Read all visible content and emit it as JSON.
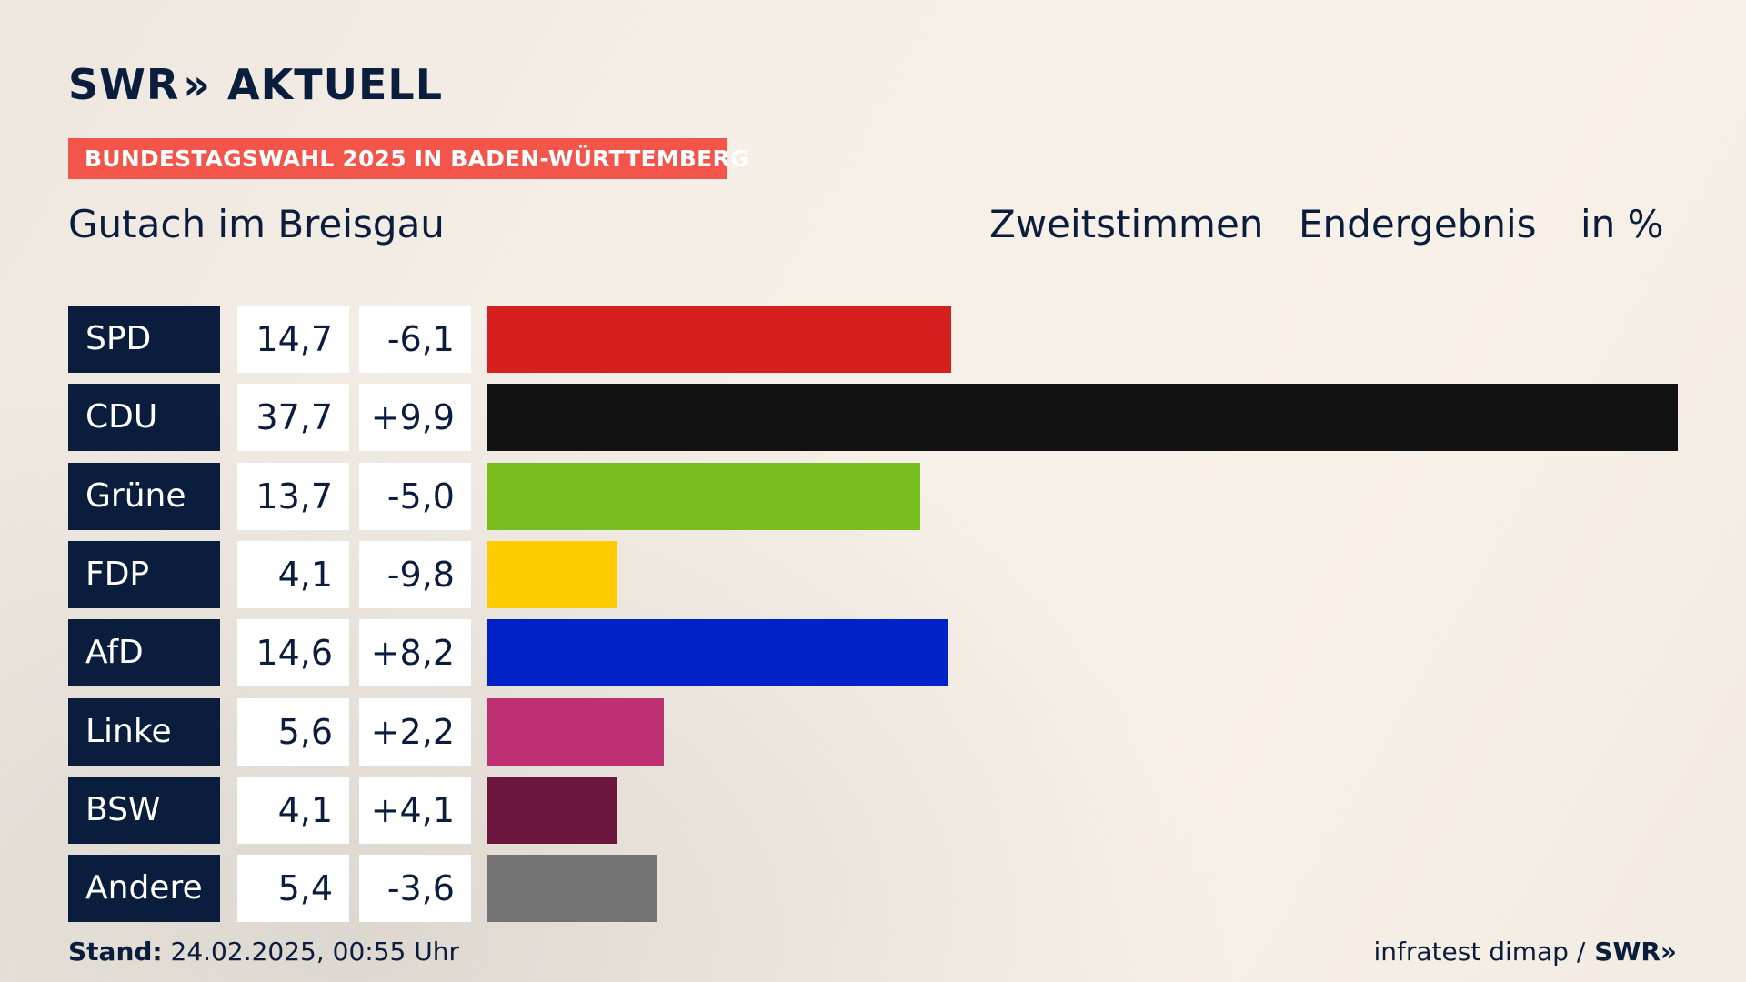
{
  "brand": {
    "logo_part1": "SWR",
    "logo_chevrons": "»",
    "logo_part2": "AKTUELL"
  },
  "topic_label": "BUNDESTAGSWAHL 2025 IN BADEN-WÜRTTEMBERG",
  "location": "Gutach im Breisgau",
  "header": {
    "vote_type": "Zweitstimmen",
    "result_type": "Endergebnis",
    "unit": "in %"
  },
  "chart_data": {
    "type": "bar",
    "orientation": "horizontal",
    "unit": "%",
    "categories": [
      "SPD",
      "CDU",
      "Grüne",
      "FDP",
      "AfD",
      "Linke",
      "BSW",
      "Andere"
    ],
    "values": [
      14.7,
      37.7,
      13.7,
      4.1,
      14.6,
      5.6,
      4.1,
      5.4
    ],
    "value_labels": [
      "14,7",
      "37,7",
      "13,7",
      "4,1",
      "14,6",
      "5,6",
      "4,1",
      "5,4"
    ],
    "change_labels": [
      "-6,1",
      "+9,9",
      "-5,0",
      "-9,8",
      "+8,2",
      "+2,2",
      "+4,1",
      "-3,6"
    ],
    "changes": [
      -6.1,
      9.9,
      -5.0,
      -9.8,
      8.2,
      2.2,
      4.1,
      -3.6
    ],
    "colors": [
      "#d62020",
      "#121212",
      "#7abd1e",
      "#ffcc00",
      "#0022c7",
      "#bd3074",
      "#6b163c",
      "#737373"
    ],
    "xlim": [
      0,
      37.7
    ]
  },
  "footer": {
    "stand_label": "Stand:",
    "stand_value": "24.02.2025, 00:55 Uhr",
    "source": "infratest dimap /",
    "source_brand": "SWR»"
  }
}
